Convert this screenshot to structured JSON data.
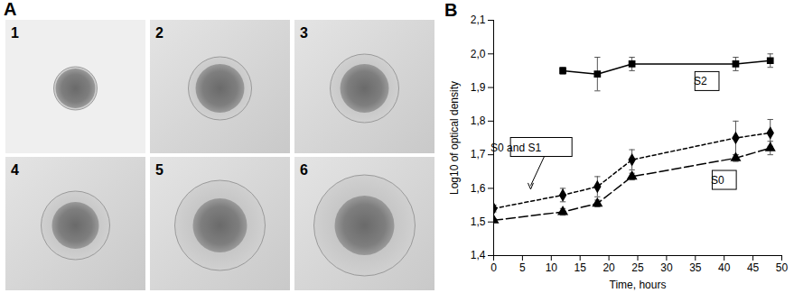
{
  "figure": {
    "panel_a": {
      "label": "A",
      "image_labels": [
        "1",
        "2",
        "3",
        "4",
        "5",
        "6"
      ]
    }
  },
  "chart_data": {
    "type": "line",
    "panel_label": "B",
    "x_label": "Time, hours",
    "y_label": "Log10 of optical density",
    "xlim": [
      0,
      50
    ],
    "xticks": [
      0,
      5,
      10,
      15,
      20,
      25,
      30,
      35,
      40,
      45,
      50
    ],
    "ylim": [
      1.4,
      2.1
    ],
    "yticks": [
      {
        "value": 1.4,
        "label": "1,4"
      },
      {
        "value": 1.5,
        "label": "1,5"
      },
      {
        "value": 1.6,
        "label": "1,6"
      },
      {
        "value": 1.7,
        "label": "1,7"
      },
      {
        "value": 1.8,
        "label": "1,8"
      },
      {
        "value": 1.9,
        "label": "1,9"
      },
      {
        "value": 2.0,
        "label": "2,0"
      },
      {
        "value": 2.1,
        "label": "2,1"
      }
    ],
    "grid": false,
    "series": [
      {
        "name": "S2",
        "color": "#000000",
        "marker": "square",
        "line_style": "solid",
        "x": [
          12,
          18,
          24,
          42,
          48
        ],
        "values": [
          1.95,
          1.94,
          1.97,
          1.97,
          1.98
        ],
        "errors": [
          0.01,
          0.05,
          0.02,
          0.02,
          0.02
        ]
      },
      {
        "name": "S0 and S1",
        "color": "#000000",
        "marker": "diamond",
        "line_style": "dashed",
        "x": [
          0,
          12,
          18,
          24,
          42,
          48
        ],
        "values": [
          1.54,
          1.58,
          1.605,
          1.685,
          1.75,
          1.765
        ],
        "errors": [
          0.01,
          0.02,
          0.03,
          0.03,
          0.05,
          0.04
        ]
      },
      {
        "name": "S0",
        "color": "#000000",
        "marker": "triangle",
        "line_style": "longdash",
        "x": [
          0,
          12,
          18,
          24,
          42,
          48
        ],
        "values": [
          1.505,
          1.53,
          1.555,
          1.635,
          1.69,
          1.72
        ],
        "errors": [
          0.005,
          0.01,
          0.01,
          0.01,
          0.01,
          0.02
        ]
      }
    ]
  }
}
